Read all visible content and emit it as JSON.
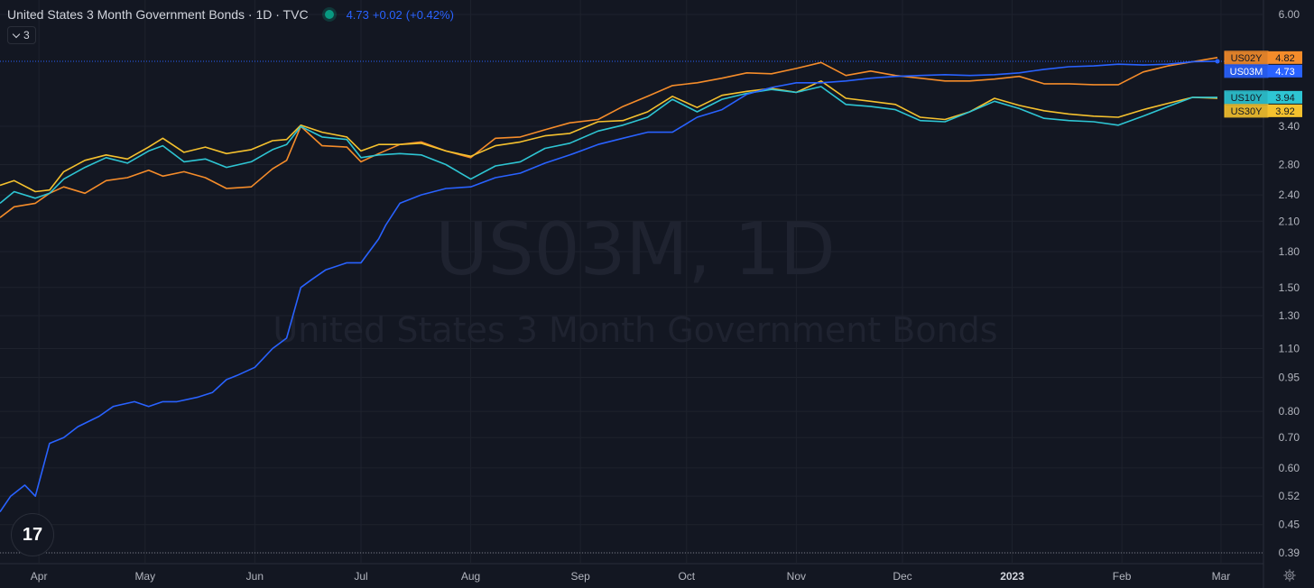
{
  "header": {
    "title": "United States 3 Month Government Bonds · 1D · TVC",
    "last": "4.73",
    "change": "+0.02",
    "change_pct": "(+0.42%)",
    "legend_count": "3"
  },
  "watermark": {
    "symbol": "US03M, 1D",
    "name": "United States 3 Month Government Bonds"
  },
  "logo": {
    "text": "17",
    "icon": "tradingview-logo-icon"
  },
  "settings_icon": "gear-icon",
  "chart_data": {
    "type": "line",
    "scale": "log",
    "y_ticks": [
      6.0,
      3.4,
      2.8,
      2.4,
      2.1,
      1.8,
      1.5,
      1.3,
      1.1,
      0.95,
      0.8,
      0.7,
      0.6,
      0.52,
      0.45,
      0.39
    ],
    "y_tick_labels": [
      "6.00",
      "3.40",
      "2.80",
      "2.40",
      "2.10",
      "1.80",
      "1.50",
      "1.30",
      "1.10",
      "0.95",
      "0.80",
      "0.70",
      "0.60",
      "0.52",
      "0.45",
      "0.39"
    ],
    "x_labels": [
      "Apr",
      "May",
      "Jun",
      "Jul",
      "Aug",
      "Sep",
      "Oct",
      "Nov",
      "Dec",
      "2023",
      "Feb",
      "Mar"
    ],
    "x_label_bold": [
      false,
      false,
      false,
      false,
      false,
      false,
      false,
      false,
      false,
      true,
      false,
      false
    ],
    "x_label_dates": [
      "2022-04-01",
      "2022-05-01",
      "2022-06-01",
      "2022-07-01",
      "2022-08-01",
      "2022-09-01",
      "2022-10-01",
      "2022-11-01",
      "2022-12-01",
      "2023-01-01",
      "2023-02-01",
      "2023-03-01"
    ],
    "x_range": [
      "2022-03-21",
      "2023-03-13"
    ],
    "grid": true,
    "series": [
      {
        "name": "US03M",
        "last": "4.73",
        "color": "#2962ff",
        "badge_text_color": "#ffffff",
        "points": [
          [
            "2022-03-21",
            0.48
          ],
          [
            "2022-03-24",
            0.52
          ],
          [
            "2022-03-28",
            0.55
          ],
          [
            "2022-03-31",
            0.52
          ],
          [
            "2022-04-04",
            0.68
          ],
          [
            "2022-04-08",
            0.7
          ],
          [
            "2022-04-12",
            0.74
          ],
          [
            "2022-04-18",
            0.78
          ],
          [
            "2022-04-22",
            0.82
          ],
          [
            "2022-04-28",
            0.84
          ],
          [
            "2022-05-02",
            0.82
          ],
          [
            "2022-05-06",
            0.84
          ],
          [
            "2022-05-10",
            0.84
          ],
          [
            "2022-05-16",
            0.86
          ],
          [
            "2022-05-20",
            0.88
          ],
          [
            "2022-05-24",
            0.94
          ],
          [
            "2022-05-27",
            0.96
          ],
          [
            "2022-06-01",
            1.0
          ],
          [
            "2022-06-06",
            1.1
          ],
          [
            "2022-06-10",
            1.16
          ],
          [
            "2022-06-14",
            1.5
          ],
          [
            "2022-06-17",
            1.56
          ],
          [
            "2022-06-21",
            1.64
          ],
          [
            "2022-06-27",
            1.7
          ],
          [
            "2022-07-01",
            1.7
          ],
          [
            "2022-07-06",
            1.92
          ],
          [
            "2022-07-08",
            2.06
          ],
          [
            "2022-07-12",
            2.3
          ],
          [
            "2022-07-18",
            2.4
          ],
          [
            "2022-07-25",
            2.48
          ],
          [
            "2022-08-01",
            2.5
          ],
          [
            "2022-08-08",
            2.62
          ],
          [
            "2022-08-15",
            2.68
          ],
          [
            "2022-08-22",
            2.82
          ],
          [
            "2022-08-29",
            2.94
          ],
          [
            "2022-09-06",
            3.1
          ],
          [
            "2022-09-13",
            3.2
          ],
          [
            "2022-09-20",
            3.3
          ],
          [
            "2022-09-27",
            3.3
          ],
          [
            "2022-10-04",
            3.56
          ],
          [
            "2022-10-11",
            3.7
          ],
          [
            "2022-10-18",
            4.0
          ],
          [
            "2022-10-25",
            4.14
          ],
          [
            "2022-11-01",
            4.24
          ],
          [
            "2022-11-08",
            4.24
          ],
          [
            "2022-11-15",
            4.28
          ],
          [
            "2022-11-22",
            4.34
          ],
          [
            "2022-11-29",
            4.38
          ],
          [
            "2022-12-06",
            4.4
          ],
          [
            "2022-12-13",
            4.42
          ],
          [
            "2022-12-20",
            4.4
          ],
          [
            "2022-12-27",
            4.42
          ],
          [
            "2023-01-03",
            4.46
          ],
          [
            "2023-01-10",
            4.54
          ],
          [
            "2023-01-17",
            4.6
          ],
          [
            "2023-01-24",
            4.62
          ],
          [
            "2023-01-31",
            4.66
          ],
          [
            "2023-02-07",
            4.64
          ],
          [
            "2023-02-14",
            4.66
          ],
          [
            "2023-02-21",
            4.72
          ],
          [
            "2023-02-28",
            4.73
          ]
        ]
      },
      {
        "name": "US02Y",
        "last": "4.82",
        "color": "#f58c2a",
        "badge_text_color": "#131722",
        "points": [
          [
            "2022-03-21",
            2.14
          ],
          [
            "2022-03-25",
            2.26
          ],
          [
            "2022-03-31",
            2.3
          ],
          [
            "2022-04-04",
            2.42
          ],
          [
            "2022-04-08",
            2.5
          ],
          [
            "2022-04-14",
            2.42
          ],
          [
            "2022-04-20",
            2.58
          ],
          [
            "2022-04-26",
            2.62
          ],
          [
            "2022-05-02",
            2.72
          ],
          [
            "2022-05-06",
            2.64
          ],
          [
            "2022-05-12",
            2.7
          ],
          [
            "2022-05-18",
            2.62
          ],
          [
            "2022-05-24",
            2.48
          ],
          [
            "2022-05-31",
            2.5
          ],
          [
            "2022-06-06",
            2.74
          ],
          [
            "2022-06-10",
            2.86
          ],
          [
            "2022-06-14",
            3.4
          ],
          [
            "2022-06-20",
            3.08
          ],
          [
            "2022-06-27",
            3.06
          ],
          [
            "2022-07-01",
            2.84
          ],
          [
            "2022-07-06",
            2.96
          ],
          [
            "2022-07-12",
            3.1
          ],
          [
            "2022-07-18",
            3.14
          ],
          [
            "2022-07-25",
            3.0
          ],
          [
            "2022-08-01",
            2.9
          ],
          [
            "2022-08-08",
            3.2
          ],
          [
            "2022-08-15",
            3.22
          ],
          [
            "2022-08-22",
            3.34
          ],
          [
            "2022-08-29",
            3.46
          ],
          [
            "2022-09-06",
            3.52
          ],
          [
            "2022-09-13",
            3.76
          ],
          [
            "2022-09-20",
            3.96
          ],
          [
            "2022-09-27",
            4.18
          ],
          [
            "2022-10-04",
            4.24
          ],
          [
            "2022-10-11",
            4.34
          ],
          [
            "2022-10-18",
            4.46
          ],
          [
            "2022-10-25",
            4.44
          ],
          [
            "2022-11-01",
            4.56
          ],
          [
            "2022-11-08",
            4.7
          ],
          [
            "2022-11-15",
            4.4
          ],
          [
            "2022-11-22",
            4.5
          ],
          [
            "2022-11-29",
            4.4
          ],
          [
            "2022-12-06",
            4.34
          ],
          [
            "2022-12-13",
            4.28
          ],
          [
            "2022-12-20",
            4.28
          ],
          [
            "2022-12-27",
            4.32
          ],
          [
            "2023-01-03",
            4.38
          ],
          [
            "2023-01-10",
            4.22
          ],
          [
            "2023-01-17",
            4.22
          ],
          [
            "2023-01-24",
            4.2
          ],
          [
            "2023-01-31",
            4.2
          ],
          [
            "2023-02-07",
            4.48
          ],
          [
            "2023-02-14",
            4.62
          ],
          [
            "2023-02-21",
            4.72
          ],
          [
            "2023-02-28",
            4.82
          ]
        ]
      },
      {
        "name": "US10Y",
        "last": "3.94",
        "color": "#2ec5d3",
        "badge_text_color": "#131722",
        "points": [
          [
            "2022-03-21",
            2.3
          ],
          [
            "2022-03-25",
            2.44
          ],
          [
            "2022-03-31",
            2.36
          ],
          [
            "2022-04-04",
            2.42
          ],
          [
            "2022-04-08",
            2.6
          ],
          [
            "2022-04-14",
            2.76
          ],
          [
            "2022-04-20",
            2.9
          ],
          [
            "2022-04-26",
            2.82
          ],
          [
            "2022-05-02",
            3.0
          ],
          [
            "2022-05-06",
            3.08
          ],
          [
            "2022-05-12",
            2.84
          ],
          [
            "2022-05-18",
            2.88
          ],
          [
            "2022-05-24",
            2.76
          ],
          [
            "2022-05-31",
            2.84
          ],
          [
            "2022-06-06",
            3.02
          ],
          [
            "2022-06-10",
            3.1
          ],
          [
            "2022-06-14",
            3.4
          ],
          [
            "2022-06-20",
            3.22
          ],
          [
            "2022-06-27",
            3.18
          ],
          [
            "2022-07-01",
            2.9
          ],
          [
            "2022-07-06",
            2.94
          ],
          [
            "2022-07-12",
            2.96
          ],
          [
            "2022-07-18",
            2.94
          ],
          [
            "2022-07-25",
            2.8
          ],
          [
            "2022-08-01",
            2.6
          ],
          [
            "2022-08-08",
            2.78
          ],
          [
            "2022-08-15",
            2.84
          ],
          [
            "2022-08-22",
            3.04
          ],
          [
            "2022-08-29",
            3.12
          ],
          [
            "2022-09-06",
            3.32
          ],
          [
            "2022-09-13",
            3.42
          ],
          [
            "2022-09-20",
            3.56
          ],
          [
            "2022-09-27",
            3.9
          ],
          [
            "2022-10-04",
            3.66
          ],
          [
            "2022-10-11",
            3.9
          ],
          [
            "2022-10-18",
            4.02
          ],
          [
            "2022-10-25",
            4.1
          ],
          [
            "2022-11-01",
            4.04
          ],
          [
            "2022-11-08",
            4.16
          ],
          [
            "2022-11-15",
            3.8
          ],
          [
            "2022-11-22",
            3.76
          ],
          [
            "2022-11-29",
            3.7
          ],
          [
            "2022-12-06",
            3.5
          ],
          [
            "2022-12-13",
            3.48
          ],
          [
            "2022-12-20",
            3.66
          ],
          [
            "2022-12-27",
            3.86
          ],
          [
            "2023-01-03",
            3.72
          ],
          [
            "2023-01-10",
            3.54
          ],
          [
            "2023-01-17",
            3.5
          ],
          [
            "2023-01-24",
            3.48
          ],
          [
            "2023-01-31",
            3.42
          ],
          [
            "2023-02-07",
            3.58
          ],
          [
            "2023-02-14",
            3.76
          ],
          [
            "2023-02-21",
            3.94
          ],
          [
            "2023-02-28",
            3.94
          ]
        ]
      },
      {
        "name": "US30Y",
        "last": "3.92",
        "color": "#f5c12e",
        "badge_text_color": "#131722",
        "points": [
          [
            "2022-03-21",
            2.52
          ],
          [
            "2022-03-25",
            2.58
          ],
          [
            "2022-03-31",
            2.44
          ],
          [
            "2022-04-04",
            2.46
          ],
          [
            "2022-04-08",
            2.7
          ],
          [
            "2022-04-14",
            2.86
          ],
          [
            "2022-04-20",
            2.94
          ],
          [
            "2022-04-26",
            2.88
          ],
          [
            "2022-05-02",
            3.06
          ],
          [
            "2022-05-06",
            3.2
          ],
          [
            "2022-05-12",
            2.98
          ],
          [
            "2022-05-18",
            3.06
          ],
          [
            "2022-05-24",
            2.96
          ],
          [
            "2022-05-31",
            3.02
          ],
          [
            "2022-06-06",
            3.16
          ],
          [
            "2022-06-10",
            3.18
          ],
          [
            "2022-06-14",
            3.42
          ],
          [
            "2022-06-20",
            3.3
          ],
          [
            "2022-06-27",
            3.22
          ],
          [
            "2022-07-01",
            3.0
          ],
          [
            "2022-07-06",
            3.1
          ],
          [
            "2022-07-12",
            3.1
          ],
          [
            "2022-07-18",
            3.12
          ],
          [
            "2022-07-25",
            3.0
          ],
          [
            "2022-08-01",
            2.92
          ],
          [
            "2022-08-08",
            3.08
          ],
          [
            "2022-08-15",
            3.14
          ],
          [
            "2022-08-22",
            3.24
          ],
          [
            "2022-08-29",
            3.28
          ],
          [
            "2022-09-06",
            3.48
          ],
          [
            "2022-09-13",
            3.5
          ],
          [
            "2022-09-20",
            3.66
          ],
          [
            "2022-09-27",
            3.96
          ],
          [
            "2022-10-04",
            3.74
          ],
          [
            "2022-10-11",
            3.98
          ],
          [
            "2022-10-18",
            4.06
          ],
          [
            "2022-10-25",
            4.12
          ],
          [
            "2022-11-01",
            4.04
          ],
          [
            "2022-11-08",
            4.28
          ],
          [
            "2022-11-15",
            3.92
          ],
          [
            "2022-11-22",
            3.86
          ],
          [
            "2022-11-29",
            3.8
          ],
          [
            "2022-12-06",
            3.56
          ],
          [
            "2022-12-13",
            3.52
          ],
          [
            "2022-12-20",
            3.66
          ],
          [
            "2022-12-27",
            3.92
          ],
          [
            "2023-01-03",
            3.78
          ],
          [
            "2023-01-10",
            3.68
          ],
          [
            "2023-01-17",
            3.62
          ],
          [
            "2023-01-24",
            3.58
          ],
          [
            "2023-01-31",
            3.56
          ],
          [
            "2023-02-07",
            3.7
          ],
          [
            "2023-02-14",
            3.82
          ],
          [
            "2023-02-21",
            3.94
          ],
          [
            "2023-02-28",
            3.92
          ]
        ]
      }
    ]
  }
}
